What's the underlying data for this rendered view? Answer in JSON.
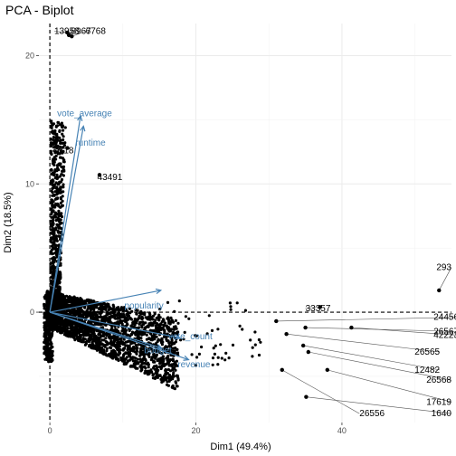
{
  "chart_data": {
    "type": "scatter",
    "title": "PCA - Biplot",
    "xlabel": "Dim1 (49.4%)",
    "ylabel": "Dim2 (18.5%)",
    "xlim": [
      -1.5,
      55
    ],
    "ylim": [
      -8.6,
      22.5
    ],
    "x_ticks": [
      0,
      20,
      40
    ],
    "y_ticks": [
      0,
      10,
      20
    ],
    "grid": true,
    "reference_lines": {
      "x": 0,
      "y": 0,
      "style": "dashed"
    },
    "colors": {
      "points": "#000000",
      "vectors": "#4682b4",
      "grid": "#ebebeb"
    },
    "labeled_points": [
      {
        "label": "13958",
        "x": 2.4,
        "y": 21.8,
        "lx": 0.6,
        "ly": 21.9
      },
      {
        "label": "8967",
        "x": 2.6,
        "y": 21.6,
        "lx": 2.9,
        "ly": 21.9
      },
      {
        "label": "6768",
        "x": 3.0,
        "y": 21.5,
        "lx": 4.9,
        "ly": 21.9
      },
      {
        "label": "9118",
        "x": 2.4,
        "y": 12.8,
        "lx": 0.6,
        "ly": 12.6
      },
      {
        "label": "43491",
        "x": 6.8,
        "y": 10.7,
        "lx": 6.5,
        "ly": 10.5
      },
      {
        "label": "293",
        "x": 53.3,
        "y": 1.7,
        "lx": 55,
        "ly": 3.5
      },
      {
        "label": "33357",
        "x": 37.0,
        "y": 0.4,
        "lx": 35.0,
        "ly": 0.3
      },
      {
        "label": "24456",
        "x": 31.0,
        "y": -0.7,
        "lx": 56,
        "ly": -0.4
      },
      {
        "label": "26567",
        "x": 35.0,
        "y": -1.2,
        "lx": 56,
        "ly": -1.5
      },
      {
        "label": "42223",
        "x": 41.3,
        "y": -1.2,
        "lx": 56,
        "ly": -1.8
      },
      {
        "label": "26565",
        "x": 32.4,
        "y": -1.7,
        "lx": 53.4,
        "ly": -3.1
      },
      {
        "label": "12482",
        "x": 34.7,
        "y": -2.6,
        "lx": 53.4,
        "ly": -4.5
      },
      {
        "label": "26568",
        "x": 35.4,
        "y": -3.1,
        "lx": 55,
        "ly": -5.3
      },
      {
        "label": "17619",
        "x": 38.0,
        "y": -4.5,
        "lx": 55,
        "ly": -7.0
      },
      {
        "label": "26556",
        "x": 31.8,
        "y": -4.5,
        "lx": 42.4,
        "ly": -7.9
      },
      {
        "label": "1640",
        "x": 35.1,
        "y": -6.6,
        "lx": 55,
        "ly": -7.9
      }
    ],
    "variables": [
      {
        "name": "vote_average",
        "x": 4.2,
        "y": 15.3,
        "lx": 1.0,
        "ly": 15.5
      },
      {
        "name": "runtime",
        "x": 4.6,
        "y": 14.5,
        "lx": 3.5,
        "ly": 13.2
      },
      {
        "name": "popularity",
        "x": 15.2,
        "y": 1.7,
        "lx": 10.2,
        "ly": 0.5
      },
      {
        "name": "vote_count",
        "x": 17.8,
        "y": -2.0,
        "lx": 16.2,
        "ly": -1.9
      },
      {
        "name": "budget",
        "x": 15.3,
        "y": -2.8,
        "lx": 12.9,
        "ly": -3.0
      },
      {
        "name": "revenue",
        "x": 19.0,
        "y": -3.7,
        "lx": 17.5,
        "ly": -4.1
      }
    ]
  }
}
